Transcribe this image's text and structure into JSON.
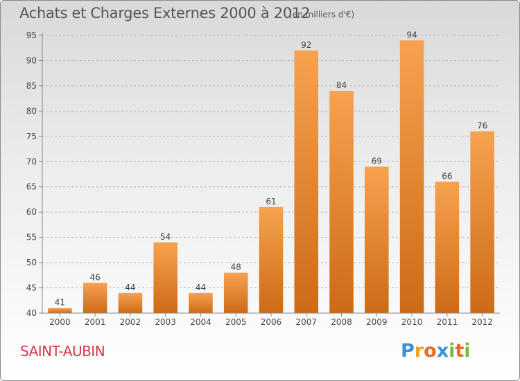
{
  "header": {
    "title": "Achats et Charges Externes 2000 à 2012",
    "unit": "(en milliers d'€)"
  },
  "footer": {
    "commune": "SAINT-AUBIN",
    "logo_letters": [
      "P",
      "r",
      "o",
      "x",
      "i",
      "t",
      "i"
    ],
    "logo_colors": [
      "#3d8fd6",
      "#f2a21b",
      "#e8672a",
      "#3d8fd6",
      "#7ab83a",
      "#e8672a",
      "#7ab83a"
    ]
  },
  "colors": {
    "bar_top": "#f6a24f",
    "bar_bottom": "#cd6a16",
    "axis": "#888888",
    "grid": "#b5b5b5",
    "text": "#444444"
  },
  "chart_data": {
    "type": "bar",
    "categories": [
      "2000",
      "2001",
      "2002",
      "2003",
      "2004",
      "2005",
      "2006",
      "2007",
      "2008",
      "2009",
      "2010",
      "2011",
      "2012"
    ],
    "values": [
      41,
      46,
      44,
      54,
      44,
      48,
      61,
      92,
      84,
      69,
      94,
      66,
      76
    ],
    "title": "Achats et Charges Externes 2000 à 2012",
    "xlabel": "",
    "ylabel": "",
    "ylim": [
      40,
      95
    ],
    "yticks": [
      40,
      45,
      50,
      55,
      60,
      65,
      70,
      75,
      80,
      85,
      90,
      95
    ],
    "grid": true
  }
}
